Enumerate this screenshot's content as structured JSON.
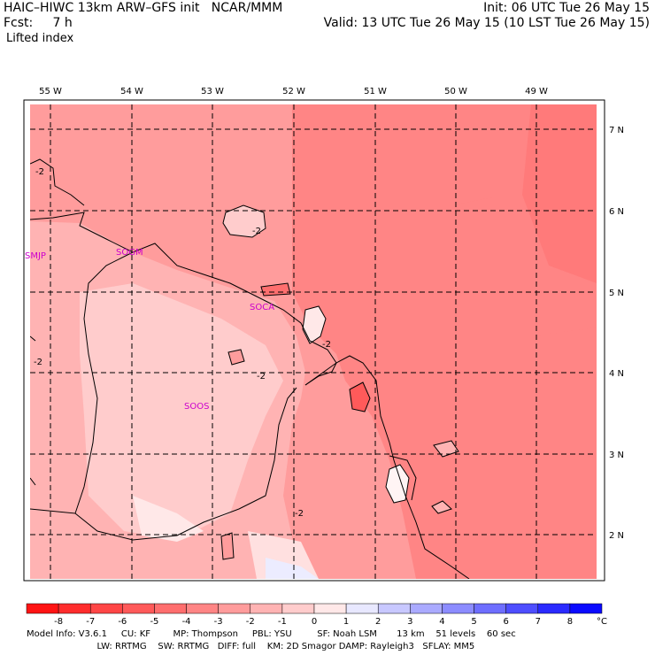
{
  "header": {
    "left_line1": "HAIC–HIWC 13km ARW–GFS init   NCAR/MMM",
    "left_line2": "Fcst:     7 h",
    "left_line3": "Lifted index",
    "right_line1": "Init: 06 UTC Tue 26 May 15",
    "right_line2": "Valid: 13 UTC Tue 26 May 15 (10 LST Tue 26 May 15)"
  },
  "map": {
    "lon_labels": [
      "55 W",
      "54 W",
      "53 W",
      "52 W",
      "51 W",
      "50 W",
      "49 W"
    ],
    "lat_labels": [
      "7 N",
      "6 N",
      "5 N",
      "4 N",
      "3 N",
      "2 N"
    ],
    "stations": [
      "SMJP",
      "SOGM",
      "SOCA",
      "SOOS"
    ],
    "contour_label": "-2"
  },
  "colorbar": {
    "ticks": [
      "-8",
      "-7",
      "-6",
      "-5",
      "-4",
      "-3",
      "-2",
      "-1",
      "0",
      "1",
      "2",
      "3",
      "4",
      "5",
      "6",
      "7",
      "8"
    ],
    "unit": "°C",
    "colors": [
      "#ff1414",
      "#ff2d2d",
      "#ff4646",
      "#ff5a5a",
      "#ff6e6e",
      "#ff8585",
      "#ff9c9c",
      "#ffb3b3",
      "#ffcccc",
      "#ffe8e8",
      "#e8e8ff",
      "#c8c8ff",
      "#aaaaff",
      "#8c8cff",
      "#6e6eff",
      "#4e4eff",
      "#2a2aff",
      "#0a0aff"
    ]
  },
  "footer": {
    "line1": "Model Info: V3.6.1     CU: KF        MP: Thompson     PBL: YSU         SF: Noah LSM       13 km    51 levels    60 sec",
    "line2": "                         LW: RRTMG    SW: RRTMG   DIFF: full    KM: 2D Smagor DAMP: Rayleigh3   SFLAY: MM5"
  }
}
